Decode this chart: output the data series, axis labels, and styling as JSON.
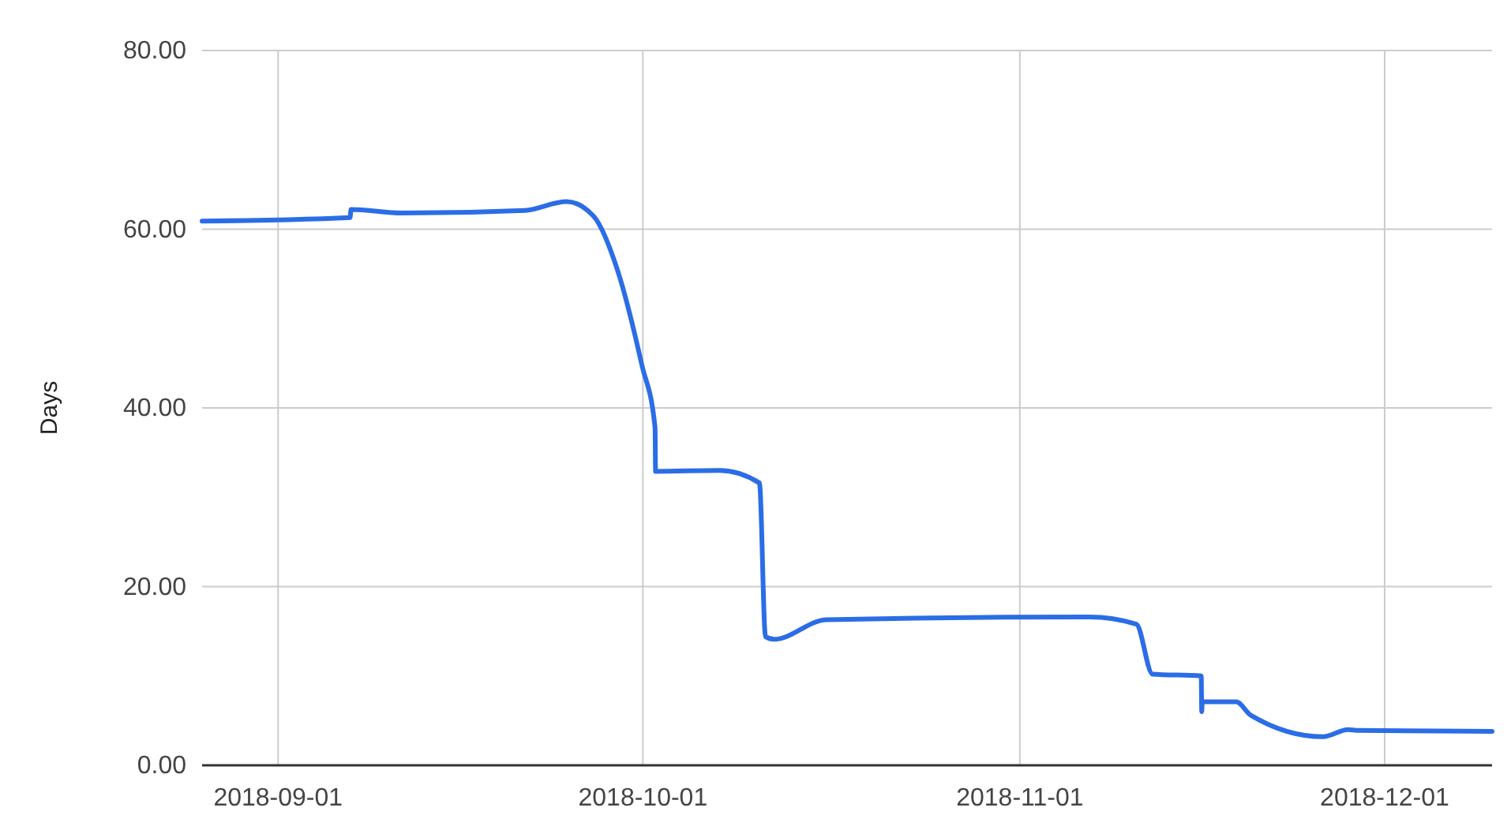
{
  "chart_data": {
    "type": "line",
    "ylabel": "Days",
    "x": [
      "2018-08-25T18:00",
      "2018-09-06T22:00",
      "2018-09-07T00:00",
      "2018-09-11T05:00",
      "2018-09-21T07:00",
      "2018-09-24T17:00",
      "2018-09-26T22:00",
      "2018-09-28T22:00",
      "2018-09-30T22:00",
      "2018-10-02T00:00",
      "2018-10-02T01:00",
      "2018-10-07T07:00",
      "2018-10-10T14:00",
      "2018-10-11T02:00",
      "2018-10-11T19:00",
      "2018-10-16T02:00",
      "2018-11-06T17:00",
      "2018-11-10T14:00",
      "2018-11-11T22:00",
      "2018-11-15T22:00",
      "2018-11-15T23:00",
      "2018-11-16T00:00",
      "2018-11-18T19:00",
      "2018-11-20T00:00",
      "2018-11-25T22:00",
      "2018-11-28T00:00",
      "2018-11-28T19:00",
      "2018-12-09T20:00"
    ],
    "series": [
      {
        "color": "#2b6de6",
        "values": [
          60.9,
          61.3,
          62.2,
          61.8,
          62.1,
          63.1,
          61.5,
          55.4,
          44.8,
          37.8,
          32.9,
          33.0,
          31.6,
          14.4,
          14.1,
          16.3,
          16.6,
          15.8,
          10.2,
          10.0,
          6.0,
          7.1,
          7.1,
          5.6,
          3.2,
          4.0,
          3.9,
          3.8
        ]
      }
    ],
    "xlim": [
      "2018-08-25T18:00",
      "2018-12-09T20:00"
    ],
    "xticks": [
      "2018-09-01",
      "2018-10-01",
      "2018-11-01",
      "2018-12-01"
    ],
    "ylim": [
      0,
      80
    ],
    "yticks": [
      {
        "value": 0,
        "label": "0.00"
      },
      {
        "value": 20,
        "label": "20.00"
      },
      {
        "value": 40,
        "label": "40.00"
      },
      {
        "value": 60,
        "label": "60.00"
      },
      {
        "value": 80,
        "label": "80.00"
      }
    ],
    "grid": true,
    "marker": "none",
    "line_style": "solid"
  }
}
